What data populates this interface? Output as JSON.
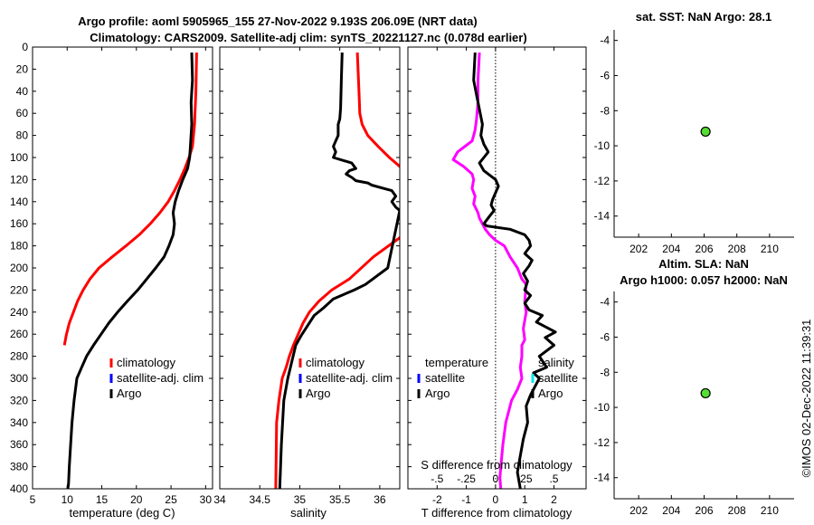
{
  "header": {
    "title_line1": "Argo profile: aoml 5905965_155 27-Nov-2022 9.193S 206.09E (NRT data)",
    "title_line2": "Climatology: CARS2009. Satellite-adj clim: synTS_20221127.nc (0.078d earlier)"
  },
  "colors": {
    "climatology": "#ff0000",
    "satellite": "#0000ff",
    "argo": "#000000",
    "sat_salinity": "#00e5ee",
    "temp_diff": "#ff00ff",
    "marker": "#55dd33"
  },
  "chart_data": [
    {
      "id": "temperature",
      "type": "line",
      "xlabel": "temperature (deg C)",
      "xlim": [
        5,
        31
      ],
      "xticks": [
        5,
        10,
        15,
        20,
        25,
        30
      ],
      "ylim": [
        0,
        400
      ],
      "yticks": [
        0,
        20,
        40,
        60,
        80,
        100,
        120,
        140,
        160,
        180,
        200,
        220,
        240,
        260,
        280,
        300,
        320,
        340,
        360,
        380,
        400
      ],
      "legend": [
        "climatology",
        "satellite-adj. clim",
        "Argo"
      ],
      "series": [
        {
          "name": "climatology",
          "color": "#ff0000",
          "x": [
            28.7,
            28.6,
            28.4,
            28.1,
            27.6,
            27.0,
            26.3,
            25.5,
            24.6,
            23.4,
            22.0,
            20.4,
            18.5,
            16.5,
            14.6,
            13.3,
            12.3,
            11.5,
            10.9,
            10.3,
            9.9,
            9.6
          ],
          "y": [
            5,
            40,
            70,
            90,
            100,
            110,
            120,
            130,
            140,
            150,
            160,
            170,
            180,
            190,
            200,
            210,
            220,
            230,
            240,
            250,
            260,
            270
          ]
        },
        {
          "name": "Argo",
          "color": "#000000",
          "x": [
            28.0,
            28.1,
            27.9,
            28.0,
            27.8,
            27.7,
            27.4,
            26.7,
            26.1,
            25.6,
            25.3,
            25.5,
            25.3,
            24.7,
            24.0,
            22.8,
            21.5,
            20.2,
            18.7,
            17.3,
            16.0,
            14.9,
            13.8,
            12.8,
            12.1,
            11.4,
            11.0,
            10.7,
            10.5,
            10.3,
            10.2,
            10.1
          ],
          "y": [
            5,
            30,
            50,
            70,
            90,
            100,
            110,
            120,
            130,
            140,
            150,
            160,
            170,
            180,
            190,
            200,
            210,
            220,
            230,
            240,
            250,
            260,
            270,
            280,
            290,
            300,
            320,
            340,
            360,
            380,
            395,
            400
          ]
        }
      ]
    },
    {
      "id": "salinity",
      "type": "line",
      "xlabel": "salinity",
      "xlim": [
        34,
        36.25
      ],
      "xticks": [
        34,
        34.5,
        35,
        35.5,
        36
      ],
      "ylim": [
        0,
        400
      ],
      "legend": [
        "climatology",
        "satellite-adj. clim",
        "Argo"
      ],
      "series": [
        {
          "name": "climatology",
          "color": "#ff0000",
          "x": [
            35.72,
            35.74,
            35.75,
            35.78,
            35.85,
            35.98,
            36.12,
            36.28,
            36.3,
            35.92,
            35.62,
            35.4,
            35.24,
            35.12,
            35.04,
            34.98,
            34.92,
            34.87,
            34.83,
            34.78,
            34.74,
            34.71,
            34.7
          ],
          "y": [
            5,
            40,
            60,
            70,
            80,
            90,
            100,
            110,
            170,
            190,
            210,
            220,
            230,
            240,
            250,
            260,
            270,
            280,
            290,
            300,
            320,
            340,
            400
          ]
        },
        {
          "name": "Argo",
          "color": "#000000",
          "x": [
            35.53,
            35.52,
            35.51,
            35.5,
            35.48,
            35.48,
            35.45,
            35.42,
            35.45,
            35.42,
            35.65,
            35.7,
            35.62,
            35.58,
            35.65,
            35.7,
            35.85,
            35.9,
            36.05,
            36.15,
            36.2,
            36.15,
            36.2,
            36.25,
            36.1,
            35.82,
            35.68,
            35.42,
            35.3,
            35.18,
            35.1,
            35.02,
            34.95,
            34.9,
            34.85,
            34.8,
            34.77,
            34.75
          ],
          "y": [
            5,
            30,
            55,
            65,
            70,
            80,
            85,
            90,
            95,
            100,
            105,
            110,
            112,
            115,
            118,
            121,
            123,
            125,
            128,
            130,
            135,
            140,
            145,
            148,
            200,
            215,
            220,
            228,
            236,
            243,
            252,
            261,
            270,
            285,
            300,
            320,
            360,
            400
          ]
        }
      ]
    },
    {
      "id": "difference",
      "type": "line",
      "xlabel": "T difference from climatology",
      "xlim": [
        -3,
        3.1
      ],
      "xticks": [
        -2,
        -1,
        0,
        1,
        2
      ],
      "x2label": "S difference from climatology",
      "x2lim": [
        -0.75,
        0.775
      ],
      "x2ticks": [
        -0.5,
        -0.25,
        0,
        0.25,
        0.5
      ],
      "ylim": [
        0,
        400
      ],
      "legend_left": [
        "temperature",
        "satellite",
        "Argo"
      ],
      "legend_right": [
        "salinity",
        "satellite",
        "Argo"
      ],
      "series": [
        {
          "name": "temperature",
          "color": "#ff00ff",
          "x": [
            -0.55,
            -0.6,
            -0.6,
            -0.65,
            -0.7,
            -0.75,
            -0.8,
            -1.3,
            -1.45,
            -1.1,
            -0.8,
            -0.75,
            -0.8,
            -0.7,
            -0.75,
            -0.6,
            -0.55,
            -0.35,
            -0.2,
            0.0,
            0.3,
            0.5,
            0.75,
            0.9,
            1.05,
            1.0,
            1.05,
            0.95,
            1.0,
            0.9,
            0.9,
            0.85,
            0.9,
            0.75,
            0.55,
            0.45,
            0.35,
            0.25,
            0.2,
            0.15,
            0.18
          ],
          "y": [
            5,
            30,
            50,
            65,
            75,
            80,
            85,
            95,
            102,
            108,
            115,
            120,
            128,
            135,
            142,
            150,
            155,
            165,
            170,
            175,
            180,
            190,
            200,
            210,
            215,
            230,
            240,
            255,
            265,
            270,
            280,
            290,
            300,
            310,
            320,
            330,
            340,
            360,
            375,
            390,
            400
          ]
        },
        {
          "name": "Argo",
          "color": "#000000",
          "x": [
            -0.7,
            -0.75,
            -0.6,
            -0.45,
            -0.5,
            -0.4,
            -0.25,
            -0.4,
            -0.55,
            -0.4,
            0.0,
            0.1,
            0.0,
            -0.1,
            -0.15,
            -0.05,
            -0.2,
            -0.4,
            -0.3,
            0.5,
            1.0,
            1.15,
            1.2,
            1.0,
            1.25,
            1.15,
            0.95,
            1.1,
            1.0,
            1.2,
            1.0,
            1.15,
            1.6,
            1.4,
            2.05,
            1.7,
            2.0,
            1.5,
            1.75,
            1.3,
            1.5,
            1.2,
            1.05,
            1.1,
            0.95,
            0.85,
            0.75,
            0.85
          ],
          "y": [
            5,
            30,
            50,
            70,
            80,
            88,
            95,
            100,
            105,
            112,
            120,
            126,
            132,
            138,
            143,
            148,
            153,
            160,
            162,
            165,
            170,
            175,
            180,
            187,
            193,
            198,
            205,
            212,
            220,
            225,
            232,
            238,
            243,
            249,
            258,
            263,
            270,
            280,
            290,
            295,
            300,
            315,
            325,
            340,
            355,
            370,
            385,
            400
          ]
        }
      ]
    },
    {
      "id": "sst_map",
      "type": "scatter",
      "title": "sat. SST: NaN Argo: 28.1",
      "xlim": [
        200.5,
        211.5
      ],
      "xticks": [
        202,
        204,
        206,
        208,
        210
      ],
      "ylim": [
        -15.2,
        -3.4
      ],
      "yticks": [
        -4,
        -6,
        -8,
        -10,
        -12,
        -14
      ],
      "points": [
        {
          "x": 206.09,
          "y": -9.193
        }
      ]
    },
    {
      "id": "sla_map",
      "type": "scatter",
      "title1": "Altim. SLA: NaN",
      "title2": "Argo h1000: 0.057 h2000: NaN",
      "xlim": [
        200.5,
        211.5
      ],
      "xticks": [
        202,
        204,
        206,
        208,
        210
      ],
      "ylim": [
        -15.2,
        -3.4
      ],
      "yticks": [
        -4,
        -6,
        -8,
        -10,
        -12,
        -14
      ],
      "points": [
        {
          "x": 206.09,
          "y": -9.193
        }
      ]
    }
  ],
  "footer": {
    "stamp": "©IMOS 02-Dec-2022 11:39:31"
  }
}
